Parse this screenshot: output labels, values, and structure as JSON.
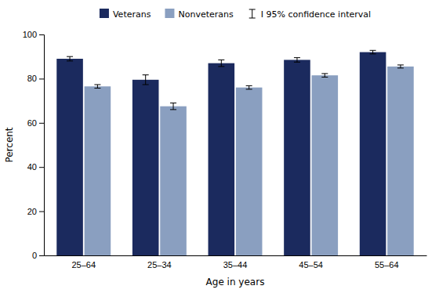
{
  "chart_data": {
    "type": "bar",
    "categories": [
      "25–64",
      "25–34",
      "35–44",
      "45–54",
      "55–64"
    ],
    "series": [
      {
        "name": "Veterans",
        "color": "#1b2a5e",
        "values": [
          89.0,
          79.5,
          87.0,
          88.5,
          92.0
        ],
        "errors": [
          1.0,
          2.2,
          1.5,
          1.0,
          0.8
        ]
      },
      {
        "name": "Nonveterans",
        "color": "#8a9fc0",
        "values": [
          76.5,
          67.5,
          76.0,
          81.5,
          85.5
        ],
        "errors": [
          0.8,
          1.5,
          0.8,
          0.8,
          0.7
        ]
      }
    ],
    "error_label": "I 95% confidence interval",
    "xlabel": "Age in years",
    "ylabel": "Percent",
    "ylim": [
      0,
      100
    ],
    "yticks": [
      0,
      20,
      40,
      60,
      80,
      100
    ],
    "grid": false,
    "legend": "top"
  }
}
